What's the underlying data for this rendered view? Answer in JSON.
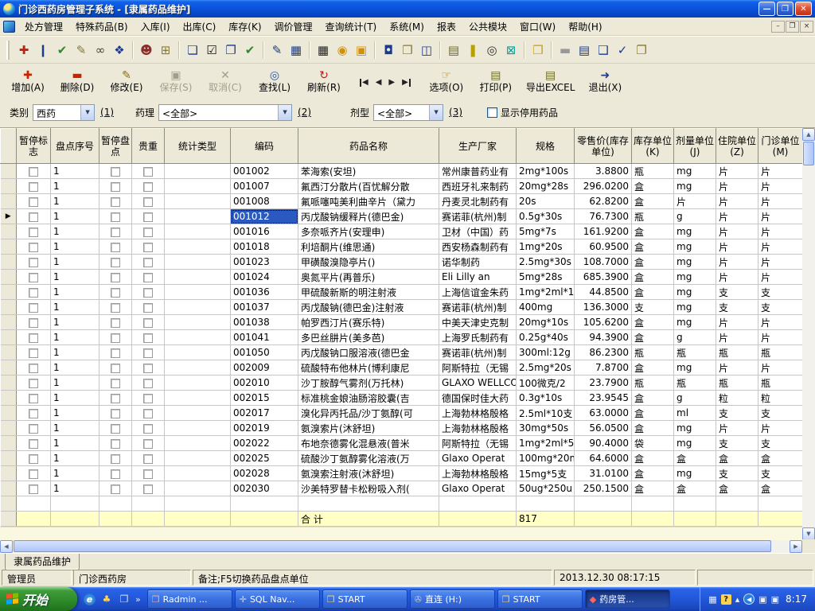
{
  "window": {
    "title": "门诊西药房管理子系统 - [隶属药品维护]"
  },
  "menubar": {
    "items": [
      "处方管理",
      "特殊药品(B)",
      "入库(I)",
      "出库(C)",
      "库存(K)",
      "调价管理",
      "查询统计(T)",
      "系统(M)",
      "报表",
      "公共模块",
      "窗口(W)",
      "帮助(H)"
    ]
  },
  "toolbar1": [
    {
      "name": "first-aid-icon",
      "glyph": "✚",
      "color": "#c22211",
      "sep": false
    },
    {
      "name": "bottle-icon",
      "glyph": "❙",
      "color": "#1a3a8c",
      "sep": false
    },
    {
      "name": "approve-icon",
      "glyph": "✔",
      "color": "#2c8a2c",
      "sep": false
    },
    {
      "name": "edit-note-icon",
      "glyph": "✎",
      "color": "#8a7a2a",
      "sep": false
    },
    {
      "name": "binoculars-icon",
      "glyph": "∞",
      "color": "#444444",
      "sep": false
    },
    {
      "name": "page-config-icon",
      "glyph": "❖",
      "color": "#1a3a8c",
      "sep": true
    },
    {
      "name": "person-query-icon",
      "glyph": "☻",
      "color": "#8c2c2c",
      "sep": false
    },
    {
      "name": "new-window-icon",
      "glyph": "⊞",
      "color": "#8a7a2a",
      "sep": true
    },
    {
      "name": "clipboard-add-icon",
      "glyph": "❏",
      "color": "#1a3a8c",
      "sep": false
    },
    {
      "name": "checkbox-icon",
      "glyph": "☑",
      "color": "#111111",
      "sep": false
    },
    {
      "name": "clipboard-copy-icon",
      "glyph": "❐",
      "color": "#1a3a8c",
      "sep": false
    },
    {
      "name": "page-verify-icon",
      "glyph": "✔",
      "color": "#2c8a2c",
      "sep": true
    },
    {
      "name": "grid-edit-icon",
      "glyph": "✎",
      "color": "#1a3a8c",
      "sep": false
    },
    {
      "name": "grid-remove-icon",
      "glyph": "▦",
      "color": "#1a3a8c",
      "sep": true
    },
    {
      "name": "matrix-icon",
      "glyph": "▦",
      "color": "#222222",
      "sep": false
    },
    {
      "name": "bell-icon",
      "glyph": "◉",
      "color": "#d49000",
      "sep": false
    },
    {
      "name": "package-icon",
      "glyph": "▣",
      "color": "#d49000",
      "sep": true
    },
    {
      "name": "trash-icon",
      "glyph": "◘",
      "color": "#1a3a8c",
      "sep": false
    },
    {
      "name": "folder-search-icon",
      "glyph": "❒",
      "color": "#8a7a2a",
      "sep": false
    },
    {
      "name": "window-search-icon",
      "glyph": "◫",
      "color": "#1a3a8c",
      "sep": true
    },
    {
      "name": "printer-folder-icon",
      "glyph": "▤",
      "color": "#6b6b2a",
      "sep": false
    },
    {
      "name": "thermometer-icon",
      "glyph": "❚",
      "color": "#b8a000",
      "sep": false
    },
    {
      "name": "magnifier-icon",
      "glyph": "◎",
      "color": "#333333",
      "sep": false
    },
    {
      "name": "close-box-icon",
      "glyph": "⊠",
      "color": "#00a0a0",
      "sep": true
    },
    {
      "name": "export-folder-icon",
      "glyph": "❒",
      "color": "#c8a000",
      "sep": true
    },
    {
      "name": "book-icon",
      "glyph": "▬",
      "color": "#999999",
      "sep": false
    },
    {
      "name": "list-icon",
      "glyph": "▤",
      "color": "#1a3a8c",
      "sep": false
    },
    {
      "name": "cascade-icon",
      "glyph": "❑",
      "color": "#1a3a8c",
      "sep": false
    },
    {
      "name": "page-check-icon",
      "glyph": "✓",
      "color": "#1a3a8c",
      "sep": false
    },
    {
      "name": "clipboard-exit-icon",
      "glyph": "❐",
      "color": "#8a7a2a",
      "sep": false
    }
  ],
  "toolbar2": {
    "left": [
      {
        "name": "add-button",
        "label": "增加(A)",
        "glyph": "✚",
        "color": "#cc2200",
        "disabled": false
      },
      {
        "name": "delete-button",
        "label": "删除(D)",
        "glyph": "▬",
        "color": "#cc2200",
        "disabled": false
      },
      {
        "name": "modify-button",
        "label": "修改(E)",
        "glyph": "✎",
        "color": "#8a6d1a",
        "disabled": false
      },
      {
        "name": "save-button",
        "label": "保存(S)",
        "glyph": "▣",
        "color": "#a29e8c",
        "disabled": true
      },
      {
        "name": "cancel-button",
        "label": "取消(C)",
        "glyph": "✕",
        "color": "#a29e8c",
        "disabled": true
      },
      {
        "name": "find-button",
        "label": "查找(L)",
        "glyph": "◎",
        "color": "#2255aa",
        "disabled": false
      },
      {
        "name": "refresh-button",
        "label": "刷新(R)",
        "glyph": "↻",
        "color": "#cc1111",
        "disabled": false
      }
    ],
    "nav": [
      {
        "name": "nav-first-button",
        "glyph": "◀",
        "bar": "l"
      },
      {
        "name": "nav-prev-button",
        "glyph": "◀",
        "bar": ""
      },
      {
        "name": "nav-next-button",
        "glyph": "▶",
        "bar": ""
      },
      {
        "name": "nav-last-button",
        "glyph": "▶",
        "bar": "r"
      }
    ],
    "right": [
      {
        "name": "options-button",
        "label": "选项(O)",
        "glyph": "☞",
        "color": "#b58900",
        "disabled": false
      },
      {
        "name": "print-button",
        "label": "打印(P)",
        "glyph": "▤",
        "color": "#6b6b2a",
        "disabled": false
      },
      {
        "name": "export-excel-button",
        "label": "导出EXCEL",
        "glyph": "▤",
        "color": "#6b6b2a",
        "disabled": false
      },
      {
        "name": "exit-button",
        "label": "退出(X)",
        "glyph": "➜",
        "color": "#223c8c",
        "disabled": false
      }
    ]
  },
  "filterbar": {
    "category_label": "类别",
    "category_value": "西药",
    "category_hint": "(1)",
    "pharmacology_label": "药理",
    "pharmacology_value": "<全部>",
    "pharmacology_hint": "(2)",
    "dosage_label": "剂型",
    "dosage_value": "<全部>",
    "dosage_hint": "(3)",
    "show_disabled_label": "显示停用药品"
  },
  "table": {
    "headers": [
      "暂停标志",
      "盘点序号",
      "暂停盘点",
      "贵重",
      "统计类型",
      "编码",
      "药品名称",
      "生产厂家",
      "规格",
      "零售价(库存单位)",
      "库存单位(K)",
      "剂量单位(J)",
      "住院单位(Z)",
      "门诊单位(M)"
    ],
    "seq_value": "1",
    "selected_row": 3,
    "rows": [
      {
        "code": "001002",
        "name": "苯海索(安坦)",
        "maker": "常州康普药业有",
        "spec": "2mg*100s",
        "price": "3.8800",
        "uk": "瓶",
        "uj": "mg",
        "uz": "片",
        "um": "片"
      },
      {
        "code": "001007",
        "name": "氟西汀分散片(百忧解分散",
        "maker": "西班牙礼来制药",
        "spec": "20mg*28s",
        "price": "296.0200",
        "uk": "盒",
        "uj": "mg",
        "uz": "片",
        "um": "片"
      },
      {
        "code": "001008",
        "name": "氟哌噻吨美利曲辛片（黛力",
        "maker": "丹麦灵北制药有",
        "spec": "20s",
        "price": "62.8200",
        "uk": "盒",
        "uj": "片",
        "uz": "片",
        "um": "片"
      },
      {
        "code": "001012",
        "name": "丙戊酸钠缓释片(德巴金)",
        "maker": "赛诺菲(杭州)制",
        "spec": "0.5g*30s",
        "price": "76.7300",
        "uk": "瓶",
        "uj": "g",
        "uz": "片",
        "um": "片"
      },
      {
        "code": "001016",
        "name": "多奈哌齐片(安理申)",
        "maker": "卫材（中国）药",
        "spec": "5mg*7s",
        "price": "161.9200",
        "uk": "盒",
        "uj": "mg",
        "uz": "片",
        "um": "片"
      },
      {
        "code": "001018",
        "name": "利培酮片(维思通)",
        "maker": "西安杨森制药有",
        "spec": "1mg*20s",
        "price": "60.9500",
        "uk": "盒",
        "uj": "mg",
        "uz": "片",
        "um": "片"
      },
      {
        "code": "001023",
        "name": "甲磺酸溴隐亭片()",
        "maker": "诺华制药",
        "spec": "2.5mg*30s",
        "price": "108.7000",
        "uk": "盒",
        "uj": "mg",
        "uz": "片",
        "um": "片"
      },
      {
        "code": "001024",
        "name": "奥氮平片(再普乐)",
        "maker": "Eli Lilly an",
        "spec": "5mg*28s",
        "price": "685.3900",
        "uk": "盒",
        "uj": "mg",
        "uz": "片",
        "um": "片"
      },
      {
        "code": "001036",
        "name": "甲硫酸新斯的明注射液",
        "maker": "上海信谊金朱药",
        "spec": "1mg*2ml*1",
        "price": "44.8500",
        "uk": "盒",
        "uj": "mg",
        "uz": "支",
        "um": "支"
      },
      {
        "code": "001037",
        "name": "丙戊酸钠(德巴金)注射液",
        "maker": "赛诺菲(杭州)制",
        "spec": "400mg",
        "price": "136.3000",
        "uk": "支",
        "uj": "mg",
        "uz": "支",
        "um": "支"
      },
      {
        "code": "001038",
        "name": "帕罗西汀片(赛乐特)",
        "maker": "中美天津史克制",
        "spec": "20mg*10s",
        "price": "105.6200",
        "uk": "盒",
        "uj": "mg",
        "uz": "片",
        "um": "片"
      },
      {
        "code": "001041",
        "name": "多巴丝肼片(美多芭)",
        "maker": "上海罗氏制药有",
        "spec": "0.25g*40s",
        "price": "94.3900",
        "uk": "盒",
        "uj": "g",
        "uz": "片",
        "um": "片"
      },
      {
        "code": "001050",
        "name": "丙戊酸钠口服溶液(德巴金",
        "maker": "赛诺菲(杭州)制",
        "spec": "300ml:12g",
        "price": "86.2300",
        "uk": "瓶",
        "uj": "瓶",
        "uz": "瓶",
        "um": "瓶"
      },
      {
        "code": "002009",
        "name": "硫酸特布他林片(博利康尼",
        "maker": "阿斯特拉（无锡",
        "spec": "2.5mg*20s",
        "price": "7.8700",
        "uk": "盒",
        "uj": "mg",
        "uz": "片",
        "um": "片"
      },
      {
        "code": "002010",
        "name": "沙丁胺醇气雾剂(万托林)",
        "maker": "GLAXO WELLCO",
        "spec": "100微克/2",
        "price": "23.7900",
        "uk": "瓶",
        "uj": "瓶",
        "uz": "瓶",
        "um": "瓶"
      },
      {
        "code": "002015",
        "name": "标准桃金娘油肠溶胶囊(吉",
        "maker": "德国保时佳大药",
        "spec": "0.3g*10s",
        "price": "23.9545",
        "uk": "盒",
        "uj": "g",
        "uz": "粒",
        "um": "粒"
      },
      {
        "code": "002017",
        "name": "溴化异丙托品/沙丁氨醇(可",
        "maker": "上海勃林格殷格",
        "spec": "2.5ml*10支",
        "price": "63.0000",
        "uk": "盒",
        "uj": "ml",
        "uz": "支",
        "um": "支"
      },
      {
        "code": "002019",
        "name": "氨溴索片(沐舒坦)",
        "maker": "上海勃林格殷格",
        "spec": "30mg*50s",
        "price": "56.0500",
        "uk": "盒",
        "uj": "mg",
        "uz": "片",
        "um": "片"
      },
      {
        "code": "002022",
        "name": "布地奈德雾化混悬液(普米",
        "maker": "阿斯特拉（无锡",
        "spec": "1mg*2ml*5",
        "price": "90.4000",
        "uk": "袋",
        "uj": "mg",
        "uz": "支",
        "um": "支"
      },
      {
        "code": "002025",
        "name": "硫酸沙丁氨醇雾化溶液(万",
        "maker": "Glaxo Operat",
        "spec": "100mg*20m",
        "price": "64.6000",
        "uk": "盒",
        "uj": "盒",
        "uz": "盒",
        "um": "盒"
      },
      {
        "code": "002028",
        "name": "氨溴索注射液(沐舒坦)",
        "maker": "上海勃林格殷格",
        "spec": "15mg*5支",
        "price": "31.0100",
        "uk": "盒",
        "uj": "mg",
        "uz": "支",
        "um": "支"
      },
      {
        "code": "002030",
        "name": "沙美特罗替卡松粉吸入剂(",
        "maker": "Glaxo Operat",
        "spec": "50ug*250u",
        "price": "250.1500",
        "uk": "盒",
        "uj": "盒",
        "uz": "盒",
        "um": "盒"
      }
    ],
    "summary_label": "合  计",
    "summary_total": "817"
  },
  "tab_label": "隶属药品维护",
  "statusbar": {
    "user": "管理员",
    "dept": "门诊西药房",
    "note": "备注;F5切换药品盘点单位",
    "datetime": "2013.12.30 08:17:15"
  },
  "taskbar": {
    "start_label": "开始",
    "quick_launch_chevron": "»",
    "tasks": [
      {
        "name": "taskbtn-radmin",
        "label": "Radmin ...",
        "glyph": "❒",
        "color": "#f0b0a0",
        "active": false
      },
      {
        "name": "taskbtn-sql-nav",
        "label": "SQL Nav...",
        "glyph": "✛",
        "color": "#d8d8d8",
        "active": false
      },
      {
        "name": "taskbtn-start-1",
        "label": "START",
        "glyph": "❒",
        "color": "#ffd34f",
        "active": false
      },
      {
        "name": "taskbtn-zhilian",
        "label": "直连 (H:)",
        "glyph": "✇",
        "color": "#cccccc",
        "active": false
      },
      {
        "name": "taskbtn-start-2",
        "label": "START",
        "glyph": "❒",
        "color": "#ffd34f",
        "active": false
      },
      {
        "name": "taskbtn-pharmacy",
        "label": "药房管...",
        "glyph": "◆",
        "color": "#ff6655",
        "active": true
      }
    ],
    "clock": "8:17"
  },
  "colors": {
    "accent": "#2a5ac0",
    "summary_bg": "#ffffc6",
    "taskbar_blue": "#2257d8",
    "start_green": "#2f8c2a"
  }
}
